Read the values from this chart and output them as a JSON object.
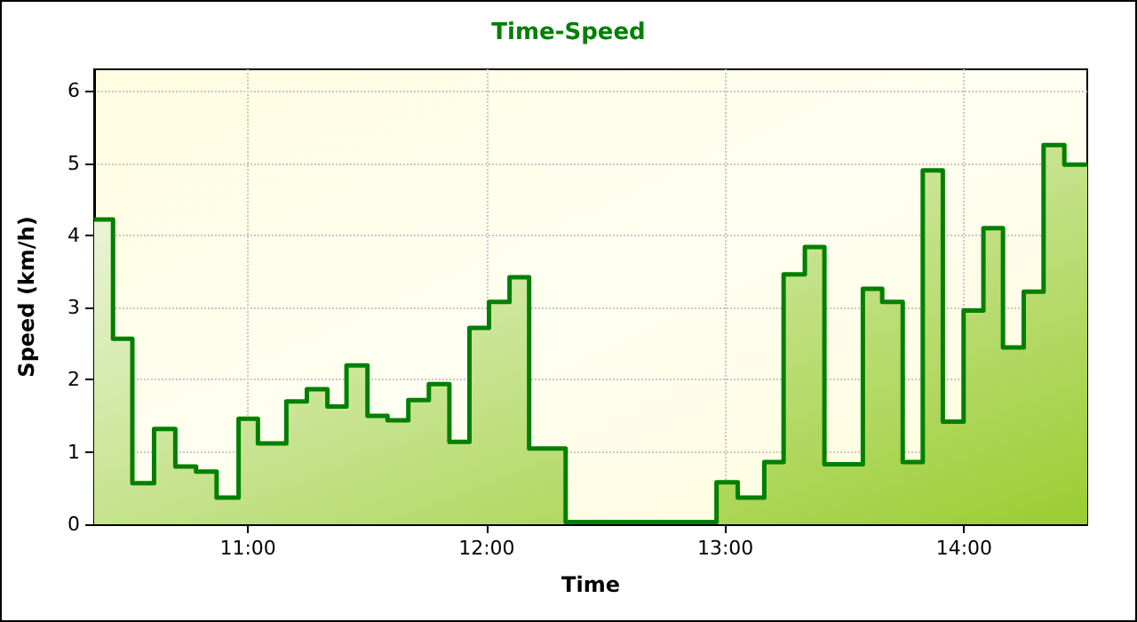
{
  "chart_data": {
    "type": "area",
    "title": "Time-Speed",
    "xlabel": "Time",
    "ylabel": "Speed (km/h)",
    "x": [
      10.356,
      10.435,
      10.435,
      10.516,
      10.516,
      10.607,
      10.607,
      10.696,
      10.696,
      10.783,
      10.783,
      10.869,
      10.869,
      10.961,
      10.961,
      11.042,
      11.042,
      11.161,
      11.161,
      11.247,
      11.247,
      11.333,
      11.333,
      11.413,
      11.413,
      11.501,
      11.501,
      11.585,
      11.585,
      11.672,
      11.672,
      11.758,
      11.758,
      11.844,
      11.844,
      11.928,
      11.928,
      12.01,
      12.01,
      12.096,
      12.096,
      12.178,
      12.178,
      12.331,
      12.331,
      12.963,
      12.963,
      13.052,
      13.052,
      13.163,
      13.163,
      13.244,
      13.244,
      13.333,
      13.333,
      13.415,
      13.415,
      13.576,
      13.576,
      13.657,
      13.657,
      13.743,
      13.743,
      13.827,
      13.827,
      13.911,
      13.911,
      13.998,
      13.998,
      14.081,
      14.081,
      14.163,
      14.163,
      14.25,
      14.25,
      14.333,
      14.333,
      14.42,
      14.42,
      14.516
    ],
    "values": [
      4.22,
      4.22,
      2.57,
      2.57,
      0.57,
      0.57,
      1.32,
      1.32,
      0.8,
      0.8,
      0.73,
      0.73,
      0.37,
      0.37,
      1.46,
      1.46,
      1.12,
      1.12,
      1.7,
      1.7,
      1.87,
      1.87,
      1.63,
      1.63,
      2.2,
      2.2,
      1.5,
      1.5,
      1.44,
      1.44,
      1.72,
      1.72,
      1.94,
      1.94,
      1.14,
      1.14,
      2.72,
      2.72,
      3.08,
      3.08,
      3.42,
      3.42,
      1.05,
      1.05,
      0.03,
      0.03,
      0.58,
      0.58,
      0.37,
      0.37,
      0.86,
      0.86,
      3.46,
      3.46,
      3.84,
      3.84,
      0.83,
      0.83,
      3.26,
      3.26,
      3.08,
      3.08,
      0.86,
      0.86,
      4.9,
      4.9,
      1.42,
      1.42,
      2.96,
      2.96,
      4.1,
      4.1,
      2.45,
      2.45,
      3.22,
      3.22,
      5.25,
      5.25,
      4.98,
      4.98
    ],
    "color": "#008000",
    "xlim": [
      10.356,
      14.516
    ],
    "xticks": [
      {
        "value": 11,
        "label": "11:00"
      },
      {
        "value": 12,
        "label": "12:00"
      },
      {
        "value": 13,
        "label": "13:00"
      },
      {
        "value": 14,
        "label": "14:00"
      }
    ],
    "ylim": [
      0,
      6.3
    ],
    "yticks": [
      0,
      1,
      2,
      3,
      4,
      5,
      6
    ],
    "grid": true,
    "line_style": "solid",
    "marker": "none"
  }
}
